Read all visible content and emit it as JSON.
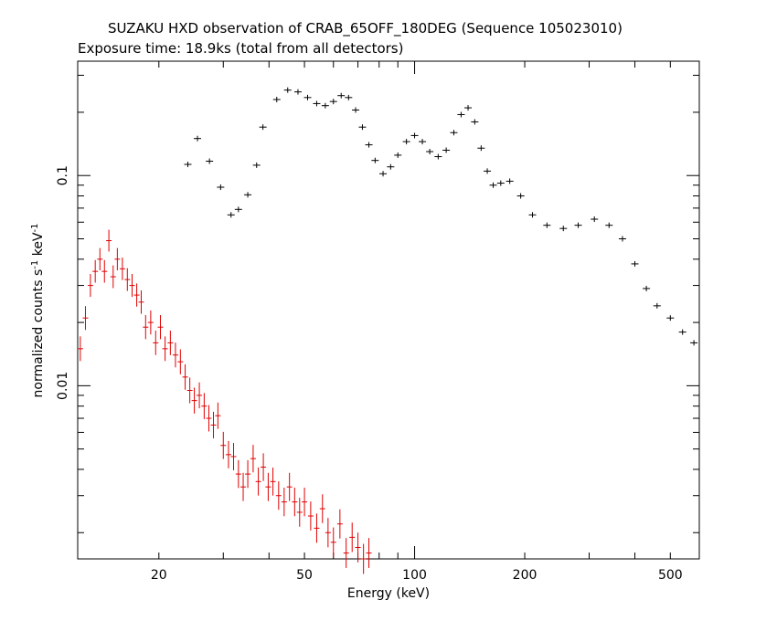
{
  "header": {
    "title": "SUZAKU HXD observation of CRAB_65OFF_180DEG (Sequence 105023010)",
    "subtitle": "Exposure time: 18.9ks (total from all detectors)"
  },
  "chart_data": {
    "type": "scatter",
    "title": "SUZAKU HXD observation of CRAB_65OFF_180DEG (Sequence 105023010)",
    "subtitle": "Exposure time: 18.9ks (total from all detectors)",
    "xlabel": "Energy (keV)",
    "ylabel": "normalized counts s^-1 keV^-1",
    "xscale": "log",
    "yscale": "log",
    "xlim": [
      12,
      600
    ],
    "ylim": [
      0.0015,
      0.35
    ],
    "x_ticks": [
      20,
      50,
      100,
      200,
      500
    ],
    "y_ticks": [
      0.01,
      0.1
    ],
    "grid": false,
    "legend": "none",
    "series": [
      {
        "color": "#000000",
        "style": "crosses",
        "x": [
          24,
          25.5,
          27.5,
          29.5,
          31.5,
          33,
          35,
          37,
          38.5,
          42,
          45,
          48,
          51,
          54,
          57,
          60,
          63,
          66,
          69,
          72,
          75,
          78,
          82,
          86,
          90,
          95,
          100,
          105,
          110,
          116,
          122,
          128,
          134,
          140,
          146,
          152,
          158,
          164,
          172,
          182,
          195,
          210,
          230,
          255,
          280,
          310,
          340,
          370,
          400,
          430,
          460,
          500,
          540,
          580
        ],
        "y": [
          0.113,
          0.15,
          0.117,
          0.088,
          0.065,
          0.069,
          0.081,
          0.112,
          0.17,
          0.23,
          0.255,
          0.25,
          0.235,
          0.22,
          0.215,
          0.225,
          0.24,
          0.235,
          0.205,
          0.17,
          0.14,
          0.118,
          0.102,
          0.11,
          0.125,
          0.145,
          0.155,
          0.145,
          0.13,
          0.123,
          0.132,
          0.16,
          0.195,
          0.21,
          0.18,
          0.135,
          0.105,
          0.09,
          0.092,
          0.094,
          0.08,
          0.065,
          0.058,
          0.056,
          0.058,
          0.062,
          0.058,
          0.05,
          0.038,
          0.029,
          0.024,
          0.021,
          0.018,
          0.016
        ]
      },
      {
        "color": "#e00000",
        "style": "crosses",
        "x": [
          12.2,
          12.6,
          13,
          13.4,
          13.8,
          14.2,
          14.6,
          15,
          15.4,
          15.9,
          16.4,
          16.9,
          17.4,
          17.9,
          18.4,
          19,
          19.6,
          20.2,
          20.8,
          21.5,
          22.2,
          22.9,
          23.6,
          24.3,
          25,
          25.8,
          26.6,
          27.4,
          28.2,
          29,
          30,
          31,
          32,
          33,
          34,
          35,
          36.2,
          37.4,
          38.6,
          39.8,
          41,
          42.5,
          44,
          45.5,
          47,
          48.5,
          50,
          52,
          54,
          56,
          58,
          60,
          62.5,
          65,
          67.5,
          70,
          72.5,
          75
        ],
        "y": [
          0.015,
          0.021,
          0.03,
          0.035,
          0.04,
          0.035,
          0.049,
          0.033,
          0.04,
          0.036,
          0.032,
          0.03,
          0.027,
          0.025,
          0.019,
          0.02,
          0.016,
          0.019,
          0.015,
          0.016,
          0.014,
          0.013,
          0.011,
          0.0095,
          0.0085,
          0.009,
          0.008,
          0.007,
          0.0065,
          0.0072,
          0.0052,
          0.0047,
          0.0046,
          0.0038,
          0.0033,
          0.0038,
          0.0045,
          0.0035,
          0.0041,
          0.0033,
          0.0035,
          0.003,
          0.0028,
          0.0033,
          0.0028,
          0.0025,
          0.0028,
          0.0024,
          0.0021,
          0.0026,
          0.002,
          0.0018,
          0.0022,
          0.0016,
          0.0019,
          0.0017,
          0.0015,
          0.0016
        ]
      }
    ]
  }
}
